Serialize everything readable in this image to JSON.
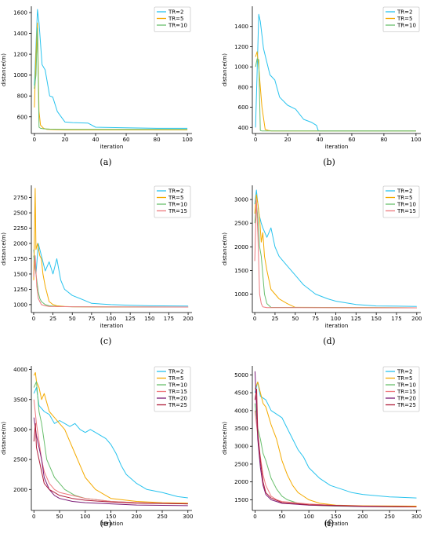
{
  "colors": {
    "TR=2": "#29c3ee",
    "TR=5": "#f4aa00",
    "TR=10": "#69bf6d",
    "TR=15": "#ee7a7e",
    "TR=20": "#7a1a76",
    "TR=25": "#b01e3a"
  },
  "chart_data": [
    {
      "type": "line",
      "caption": "(a)",
      "xlabel": "iteration",
      "ylabel": "distance(m)",
      "xlim": [
        -2,
        103
      ],
      "ylim": [
        440,
        1660
      ],
      "xticks": [
        0,
        20,
        40,
        60,
        80,
        100
      ],
      "yticks": [
        600,
        800,
        1000,
        1200,
        1400,
        1600
      ],
      "series": [
        {
          "name": "TR=2",
          "x": [
            0,
            2,
            3,
            5,
            7,
            10,
            12,
            15,
            18,
            20,
            25,
            35,
            40,
            60,
            80,
            100
          ],
          "y": [
            900,
            1630,
            1500,
            1100,
            1050,
            800,
            790,
            650,
            590,
            550,
            545,
            540,
            500,
            495,
            490,
            490
          ]
        },
        {
          "name": "TR=5",
          "x": [
            0,
            1,
            2,
            3,
            4,
            6,
            8,
            12,
            20,
            100
          ],
          "y": [
            690,
            1200,
            1500,
            650,
            520,
            490,
            480,
            478,
            475,
            475
          ]
        },
        {
          "name": "TR=10",
          "x": [
            0,
            1,
            2,
            3,
            4,
            6,
            10,
            20,
            100
          ],
          "y": [
            870,
            1000,
            1450,
            500,
            490,
            485,
            482,
            480,
            480
          ]
        }
      ]
    },
    {
      "type": "line",
      "caption": "(b)",
      "xlabel": "iteration",
      "ylabel": "distance(m)",
      "xlim": [
        -2,
        103
      ],
      "ylim": [
        340,
        1600
      ],
      "xticks": [
        0,
        20,
        40,
        60,
        80,
        100
      ],
      "yticks": [
        400,
        600,
        800,
        1000,
        1200,
        1400
      ],
      "series": [
        {
          "name": "TR=2",
          "x": [
            0,
            2,
            3,
            5,
            7,
            9,
            12,
            15,
            20,
            25,
            30,
            35,
            38,
            39,
            40,
            100
          ],
          "y": [
            400,
            1520,
            1450,
            1180,
            1050,
            920,
            870,
            700,
            620,
            580,
            480,
            450,
            420,
            370,
            365,
            365
          ]
        },
        {
          "name": "TR=5",
          "x": [
            0,
            1,
            2,
            3,
            4,
            6,
            8,
            10,
            100
          ],
          "y": [
            1100,
            1150,
            1000,
            800,
            600,
            380,
            370,
            365,
            365
          ]
        },
        {
          "name": "TR=10",
          "x": [
            0,
            1,
            2,
            3,
            4,
            100
          ],
          "y": [
            1000,
            1080,
            1070,
            370,
            365,
            365
          ]
        }
      ]
    },
    {
      "type": "line",
      "caption": "(c)",
      "xlabel": "iteration",
      "ylabel": "distance(m)",
      "xlim": [
        -3,
        205
      ],
      "ylim": [
        870,
        2950
      ],
      "xticks": [
        0,
        25,
        50,
        75,
        100,
        125,
        150,
        175,
        200
      ],
      "yticks": [
        1000,
        1250,
        1500,
        1750,
        2000,
        2250,
        2500,
        2750
      ],
      "series": [
        {
          "name": "TR=2",
          "x": [
            0,
            3,
            6,
            10,
            15,
            20,
            25,
            30,
            35,
            40,
            50,
            60,
            75,
            100,
            125,
            150,
            200
          ],
          "y": [
            1900,
            1500,
            2000,
            1800,
            1550,
            1700,
            1500,
            1750,
            1400,
            1250,
            1150,
            1100,
            1020,
            1000,
            990,
            980,
            975
          ]
        },
        {
          "name": "TR=5",
          "x": [
            0,
            2,
            3,
            5,
            8,
            10,
            12,
            15,
            18,
            20,
            25,
            30,
            40,
            50,
            100,
            200
          ],
          "y": [
            1400,
            2900,
            1900,
            2000,
            1800,
            1750,
            1500,
            1300,
            1150,
            1050,
            1000,
            980,
            970,
            965,
            960,
            960
          ]
        },
        {
          "name": "TR=10",
          "x": [
            0,
            2,
            4,
            6,
            8,
            10,
            15,
            20,
            30,
            50,
            200
          ],
          "y": [
            1800,
            1600,
            1400,
            1200,
            1100,
            1050,
            1000,
            980,
            970,
            965,
            960
          ]
        },
        {
          "name": "TR=15",
          "x": [
            0,
            2,
            4,
            6,
            8,
            10,
            15,
            20,
            50,
            200
          ],
          "y": [
            1450,
            1800,
            1300,
            1100,
            1050,
            1000,
            980,
            970,
            965,
            960
          ]
        }
      ]
    },
    {
      "type": "line",
      "caption": "(d)",
      "xlabel": "iteration",
      "ylabel": "distance(m)",
      "xlim": [
        -3,
        205
      ],
      "ylim": [
        610,
        3300
      ],
      "xticks": [
        0,
        25,
        50,
        75,
        100,
        125,
        150,
        175,
        200
      ],
      "yticks": [
        1000,
        1500,
        2000,
        2500,
        3000
      ],
      "series": [
        {
          "name": "TR=2",
          "x": [
            0,
            2,
            5,
            8,
            10,
            15,
            20,
            25,
            30,
            40,
            50,
            60,
            75,
            90,
            100,
            125,
            150,
            200
          ],
          "y": [
            2900,
            3200,
            2700,
            2500,
            2400,
            2200,
            2400,
            2000,
            1800,
            1600,
            1400,
            1200,
            1000,
            900,
            850,
            780,
            750,
            740
          ]
        },
        {
          "name": "TR=5",
          "x": [
            0,
            2,
            4,
            6,
            8,
            10,
            12,
            15,
            20,
            30,
            40,
            50,
            200
          ],
          "y": [
            2700,
            3100,
            2900,
            2600,
            2100,
            2300,
            1800,
            1500,
            1100,
            900,
            800,
            720,
            710
          ]
        },
        {
          "name": "TR=10",
          "x": [
            0,
            2,
            4,
            6,
            8,
            10,
            12,
            15,
            20,
            200
          ],
          "y": [
            2500,
            2900,
            2600,
            2000,
            1800,
            1400,
            1000,
            800,
            720,
            710
          ]
        },
        {
          "name": "TR=15",
          "x": [
            0,
            2,
            4,
            6,
            8,
            10,
            15,
            200
          ],
          "y": [
            1700,
            3000,
            2200,
            1000,
            800,
            730,
            715,
            710
          ]
        }
      ]
    },
    {
      "type": "line",
      "caption": "(e)",
      "xlabel": "iteration",
      "ylabel": "distance(m)",
      "xlim": [
        -5,
        308
      ],
      "ylim": [
        1650,
        4060
      ],
      "xticks": [
        0,
        50,
        100,
        150,
        200,
        250,
        300
      ],
      "yticks": [
        2000,
        2500,
        3000,
        3500,
        4000
      ],
      "series": [
        {
          "name": "TR=2",
          "x": [
            0,
            5,
            10,
            20,
            30,
            40,
            50,
            60,
            70,
            80,
            90,
            100,
            110,
            120,
            130,
            140,
            150,
            160,
            170,
            180,
            200,
            220,
            250,
            280,
            300
          ],
          "y": [
            3600,
            3700,
            3400,
            3300,
            3250,
            3100,
            3150,
            3100,
            3050,
            3100,
            3000,
            2950,
            3000,
            2950,
            2900,
            2850,
            2750,
            2600,
            2400,
            2250,
            2100,
            2000,
            1950,
            1880,
            1860
          ]
        },
        {
          "name": "TR=5",
          "x": [
            0,
            3,
            5,
            10,
            15,
            20,
            30,
            40,
            50,
            60,
            70,
            80,
            90,
            100,
            120,
            150,
            200,
            250,
            300
          ],
          "y": [
            3900,
            3950,
            3800,
            3700,
            3500,
            3600,
            3300,
            3200,
            3100,
            3000,
            2800,
            2600,
            2400,
            2200,
            2000,
            1850,
            1800,
            1780,
            1770
          ]
        },
        {
          "name": "TR=10",
          "x": [
            0,
            5,
            10,
            15,
            20,
            25,
            30,
            40,
            50,
            60,
            70,
            80,
            100,
            150,
            200,
            300
          ],
          "y": [
            3700,
            3800,
            3300,
            3100,
            2800,
            2500,
            2400,
            2200,
            2100,
            2000,
            1950,
            1900,
            1850,
            1800,
            1780,
            1760
          ]
        },
        {
          "name": "TR=15",
          "x": [
            0,
            5,
            10,
            15,
            20,
            30,
            40,
            50,
            75,
            100,
            150,
            200,
            300
          ],
          "y": [
            3500,
            3100,
            2800,
            2500,
            2300,
            2100,
            2000,
            1950,
            1900,
            1850,
            1800,
            1780,
            1760
          ]
        },
        {
          "name": "TR=20",
          "x": [
            0,
            5,
            10,
            15,
            20,
            30,
            40,
            50,
            75,
            100,
            150,
            200,
            300
          ],
          "y": [
            3200,
            2900,
            2700,
            2500,
            2200,
            2000,
            1900,
            1850,
            1800,
            1780,
            1760,
            1740,
            1730
          ]
        },
        {
          "name": "TR=25",
          "x": [
            0,
            3,
            5,
            10,
            15,
            20,
            30,
            40,
            50,
            75,
            100,
            150,
            200,
            300
          ],
          "y": [
            2800,
            3100,
            2700,
            2500,
            2300,
            2100,
            2000,
            1950,
            1900,
            1850,
            1820,
            1790,
            1770,
            1760
          ]
        }
      ]
    },
    {
      "type": "line",
      "caption": "(f)",
      "xlabel": "iteration",
      "ylabel": "distance(m)",
      "xlim": [
        -5,
        308
      ],
      "ylim": [
        1200,
        5250
      ],
      "xticks": [
        0,
        50,
        100,
        150,
        200,
        250,
        300
      ],
      "yticks": [
        1500,
        2000,
        2500,
        3000,
        3500,
        4000,
        4500,
        5000
      ],
      "series": [
        {
          "name": "TR=2",
          "x": [
            0,
            5,
            10,
            20,
            30,
            40,
            50,
            60,
            70,
            80,
            90,
            100,
            120,
            140,
            160,
            180,
            200,
            250,
            300
          ],
          "y": [
            4500,
            4800,
            4400,
            4300,
            4000,
            3900,
            3800,
            3500,
            3200,
            2900,
            2700,
            2400,
            2100,
            1900,
            1800,
            1700,
            1650,
            1580,
            1550
          ]
        },
        {
          "name": "TR=5",
          "x": [
            0,
            5,
            10,
            15,
            20,
            30,
            40,
            50,
            60,
            70,
            80,
            100,
            120,
            150,
            200,
            300
          ],
          "y": [
            4600,
            4800,
            4500,
            4200,
            4100,
            3600,
            3200,
            2600,
            2200,
            1900,
            1700,
            1500,
            1400,
            1350,
            1330,
            1320
          ]
        },
        {
          "name": "TR=10",
          "x": [
            0,
            5,
            10,
            15,
            20,
            30,
            40,
            50,
            60,
            80,
            100,
            150,
            200,
            300
          ],
          "y": [
            4200,
            3500,
            3200,
            2800,
            2600,
            2100,
            1800,
            1600,
            1500,
            1400,
            1350,
            1320,
            1310,
            1300
          ]
        },
        {
          "name": "TR=15",
          "x": [
            0,
            5,
            10,
            15,
            20,
            30,
            40,
            50,
            100,
            150,
            200,
            300
          ],
          "y": [
            4000,
            3300,
            2700,
            2200,
            1900,
            1600,
            1500,
            1450,
            1380,
            1340,
            1320,
            1300
          ]
        },
        {
          "name": "TR=20",
          "x": [
            0,
            3,
            5,
            10,
            15,
            20,
            30,
            50,
            100,
            200,
            300
          ],
          "y": [
            5100,
            4000,
            3200,
            2400,
            1900,
            1650,
            1500,
            1400,
            1350,
            1310,
            1300
          ]
        },
        {
          "name": "TR=25",
          "x": [
            0,
            3,
            5,
            10,
            15,
            20,
            30,
            50,
            100,
            200,
            300
          ],
          "y": [
            4300,
            4600,
            3400,
            2600,
            2000,
            1700,
            1550,
            1420,
            1360,
            1320,
            1300
          ]
        }
      ]
    }
  ]
}
